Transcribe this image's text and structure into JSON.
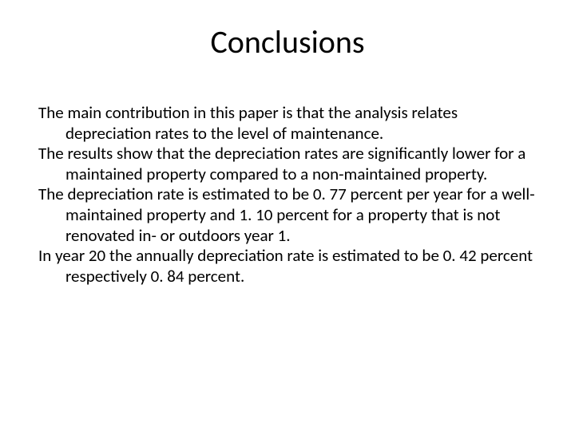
{
  "slide": {
    "title": "Conclusions",
    "paragraphs": [
      "The main contribution in this paper is that the analysis relates depreciation rates to the level of maintenance.",
      "The results show that the depreciation rates are significantly lower for a maintained property compared to a non-maintained property.",
      "The depreciation rate is estimated to be 0. 77 percent per year for a well-maintained property and 1. 10 percent for a property that is not renovated in- or outdoors year 1.",
      "In year 20 the annually depreciation rate is estimated to be 0. 42 percent respectively 0. 84 percent."
    ]
  },
  "style": {
    "background_color": "#ffffff",
    "text_color": "#000000",
    "title_fontsize": 40,
    "body_fontsize": 21,
    "font_family": "Calibri"
  }
}
